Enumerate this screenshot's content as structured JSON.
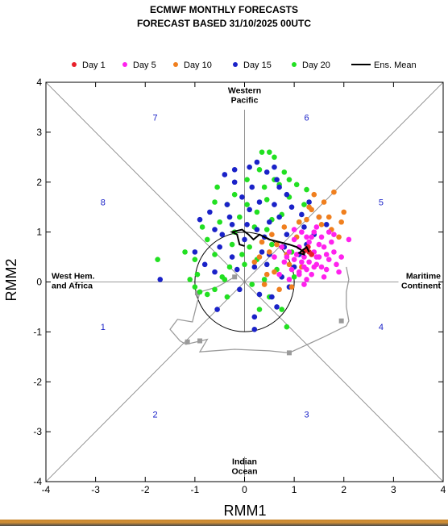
{
  "chart_data": {
    "type": "scatter",
    "title_line1": "ECMWF MONTHLY FORECASTS",
    "title_line2": "FORECAST  BASED 31/10/2025 00UTC",
    "xlabel": "RMM1",
    "ylabel": "RMM2",
    "xlim": [
      -4,
      4
    ],
    "ylim": [
      -4,
      4
    ],
    "xticks": [
      -4,
      -3,
      -2,
      -1,
      0,
      1,
      2,
      3,
      4
    ],
    "yticks": [
      -4,
      -3,
      -2,
      -1,
      0,
      1,
      2,
      3,
      4
    ],
    "grid": false,
    "legend_position": "top",
    "legend": [
      {
        "label": "Day 1",
        "color": "#e8202a",
        "kind": "dot"
      },
      {
        "label": "Day 5",
        "color": "#ff22ee",
        "kind": "dot"
      },
      {
        "label": "Day 10",
        "color": "#f07f1e",
        "kind": "dot"
      },
      {
        "label": "Day 15",
        "color": "#1a22c8",
        "kind": "dot"
      },
      {
        "label": "Day 20",
        "color": "#22e022",
        "kind": "dot"
      },
      {
        "label": "Ens. Mean",
        "color": "#000000",
        "kind": "line"
      }
    ],
    "regions": [
      {
        "name": "western-pacific",
        "lines": [
          "Western",
          "Pacific"
        ],
        "x": 0,
        "y": 3.72
      },
      {
        "name": "maritime-continent",
        "lines": [
          "Maritime",
          "Continent"
        ],
        "x": 3.45,
        "y": 0
      },
      {
        "name": "indian-ocean",
        "lines": [
          "Indian",
          "Ocean"
        ],
        "x": 0,
        "y": -3.72
      },
      {
        "name": "west-hem-africa",
        "lines": [
          "West Hem.",
          "and Africa"
        ],
        "x": -3.45,
        "y": 0
      }
    ],
    "phases": [
      {
        "label": "1",
        "x": -2.85,
        "y": -0.9
      },
      {
        "label": "2",
        "x": -1.8,
        "y": -2.65
      },
      {
        "label": "3",
        "x": 1.25,
        "y": -2.65
      },
      {
        "label": "4",
        "x": 2.75,
        "y": -0.9
      },
      {
        "label": "5",
        "x": 2.75,
        "y": 1.6
      },
      {
        "label": "6",
        "x": 1.25,
        "y": 3.3
      },
      {
        "label": "7",
        "x": -1.8,
        "y": 3.3
      },
      {
        "label": "8",
        "x": -2.85,
        "y": 1.6
      }
    ],
    "observed_track": [
      [
        -0.2,
        0.1
      ],
      [
        -0.55,
        -0.1
      ],
      [
        -0.9,
        -0.2
      ],
      [
        -1.05,
        -0.8
      ],
      [
        -1.35,
        -0.75
      ],
      [
        -1.5,
        -0.95
      ],
      [
        -1.3,
        -1.18
      ],
      [
        -1.18,
        -1.25
      ],
      [
        -0.75,
        -1.15
      ],
      [
        -0.9,
        -1.4
      ],
      [
        -0.2,
        -1.35
      ],
      [
        0.5,
        -1.38
      ],
      [
        0.9,
        -1.42
      ],
      [
        1.6,
        -1.1
      ],
      [
        2.05,
        -0.88
      ],
      [
        2.1,
        -0.78
      ],
      [
        2.05,
        -0.5
      ],
      [
        2.05,
        -0.2
      ],
      [
        2.1,
        0.05
      ],
      [
        2.05,
        0.3
      ]
    ],
    "observed_markers": [
      [
        -0.2,
        0.1
      ],
      [
        -0.95,
        -0.22
      ],
      [
        -1.15,
        -1.2
      ],
      [
        -0.9,
        -1.18
      ],
      [
        0.9,
        -1.42
      ],
      [
        1.95,
        -0.78
      ]
    ],
    "ens_mean": [
      [
        1.3,
        0.6
      ],
      [
        1.25,
        0.7
      ],
      [
        1.1,
        0.58
      ],
      [
        1.2,
        0.55
      ],
      [
        1.2,
        0.6
      ],
      [
        1.05,
        0.7
      ],
      [
        0.9,
        0.75
      ],
      [
        0.7,
        0.8
      ],
      [
        0.5,
        0.85
      ],
      [
        0.3,
        0.95
      ],
      [
        0.18,
        0.85
      ],
      [
        0.08,
        0.95
      ],
      [
        -0.05,
        1.05
      ],
      [
        -0.25,
        1.0
      ],
      [
        -0.15,
        0.95
      ],
      [
        -0.1,
        0.75
      ],
      [
        0.0,
        0.72
      ]
    ],
    "series": [
      {
        "name": "Day 1",
        "color": "#e8202a",
        "points": [
          [
            1.25,
            0.65
          ],
          [
            1.3,
            0.6
          ],
          [
            1.2,
            0.62
          ],
          [
            1.35,
            0.55
          ],
          [
            1.28,
            0.7
          ]
        ]
      },
      {
        "name": "Day 5",
        "color": "#ff22ee",
        "points": [
          [
            1.2,
            0.5
          ],
          [
            1.4,
            0.6
          ],
          [
            1.1,
            0.7
          ],
          [
            1.0,
            0.45
          ],
          [
            1.5,
            0.5
          ],
          [
            1.3,
            0.8
          ],
          [
            0.9,
            0.6
          ],
          [
            1.6,
            0.7
          ],
          [
            1.2,
            0.3
          ],
          [
            0.8,
            0.4
          ],
          [
            1.1,
            0.2
          ],
          [
            1.45,
            0.35
          ],
          [
            1.7,
            0.45
          ],
          [
            1.25,
            0.9
          ],
          [
            1.55,
            0.9
          ],
          [
            1.0,
            0.85
          ],
          [
            0.95,
            0.25
          ],
          [
            1.35,
            0.15
          ],
          [
            1.65,
            0.25
          ],
          [
            1.8,
            0.6
          ],
          [
            1.4,
            1.0
          ],
          [
            0.75,
            0.7
          ],
          [
            1.15,
            1.0
          ],
          [
            1.6,
            0.1
          ],
          [
            1.25,
            0.05
          ],
          [
            0.9,
            0.05
          ],
          [
            1.85,
            0.35
          ],
          [
            1.5,
            0.75
          ],
          [
            1.05,
            0.55
          ],
          [
            1.3,
            0.4
          ],
          [
            2.1,
            0.85
          ],
          [
            1.75,
            0.8
          ],
          [
            1.9,
            0.2
          ],
          [
            1.2,
            -0.05
          ],
          [
            0.7,
            0.15
          ],
          [
            1.45,
            1.1
          ],
          [
            1.0,
            1.05
          ],
          [
            1.65,
            0.55
          ],
          [
            1.4,
            0.3
          ],
          [
            1.15,
            0.4
          ],
          [
            0.85,
            0.5
          ],
          [
            1.95,
            0.5
          ],
          [
            1.55,
            0.3
          ],
          [
            1.35,
            0.9
          ],
          [
            1.1,
            0.15
          ],
          [
            1.7,
            1.0
          ],
          [
            1.25,
            0.25
          ],
          [
            0.6,
            0.5
          ],
          [
            1.8,
            0.95
          ],
          [
            1.45,
            0.5
          ]
        ]
      },
      {
        "name": "Day 10",
        "color": "#f07f1e",
        "points": [
          [
            1.8,
            1.8
          ],
          [
            1.95,
            1.2
          ],
          [
            1.7,
            1.3
          ],
          [
            0.9,
            0.35
          ],
          [
            0.6,
            0.2
          ],
          [
            0.4,
            -0.05
          ],
          [
            0.7,
            -0.15
          ],
          [
            1.3,
            1.5
          ],
          [
            1.5,
            1.3
          ],
          [
            1.1,
            1.2
          ],
          [
            0.8,
            1.1
          ],
          [
            0.5,
            0.6
          ],
          [
            0.3,
            0.5
          ],
          [
            1.9,
            0.9
          ],
          [
            1.6,
            1.6
          ],
          [
            0.95,
            -0.1
          ],
          [
            0.55,
            0.95
          ],
          [
            1.25,
            1.25
          ],
          [
            1.4,
            1.75
          ],
          [
            0.2,
            0.4
          ],
          [
            1.75,
            1.05
          ],
          [
            0.65,
            0.75
          ],
          [
            1.05,
            0.9
          ],
          [
            0.45,
            0.15
          ],
          [
            1.35,
            1.45
          ],
          [
            0.85,
            0.55
          ],
          [
            1.55,
            1.15
          ],
          [
            0.35,
            0.8
          ],
          [
            2.0,
            1.4
          ],
          [
            1.15,
            0.3
          ]
        ]
      },
      {
        "name": "Day 15",
        "color": "#1a22c8",
        "points": [
          [
            -1.7,
            0.05
          ],
          [
            -0.9,
            1.25
          ],
          [
            -0.7,
            1.4
          ],
          [
            -0.3,
            1.3
          ],
          [
            -0.2,
            2.0
          ],
          [
            0.1,
            2.3
          ],
          [
            0.45,
            2.2
          ],
          [
            0.7,
            1.9
          ],
          [
            0.3,
            1.6
          ],
          [
            0.5,
            1.2
          ],
          [
            0.05,
            1.15
          ],
          [
            -0.5,
            0.7
          ],
          [
            -0.8,
            0.35
          ],
          [
            -0.1,
            -0.15
          ],
          [
            0.2,
            -0.7
          ],
          [
            0.65,
            -0.5
          ],
          [
            -0.55,
            -0.55
          ],
          [
            0.85,
            0.95
          ],
          [
            1.15,
            1.35
          ],
          [
            0.2,
            -0.95
          ],
          [
            -0.25,
            0.5
          ],
          [
            0.35,
            0.6
          ],
          [
            -0.4,
            2.15
          ],
          [
            0.25,
            2.4
          ],
          [
            0.6,
            2.3
          ],
          [
            -0.2,
            2.25
          ],
          [
            0.0,
            0.85
          ],
          [
            0.45,
            0.35
          ],
          [
            0.8,
            0.7
          ],
          [
            -0.6,
            1.05
          ],
          [
            1.3,
            1.6
          ],
          [
            1.1,
            0.55
          ],
          [
            0.6,
            1.55
          ],
          [
            0.4,
            0.9
          ],
          [
            -0.35,
            1.55
          ],
          [
            -1.0,
            0.6
          ],
          [
            0.15,
            1.9
          ],
          [
            0.75,
            0.1
          ],
          [
            1.4,
            0.95
          ],
          [
            0.25,
            1.05
          ],
          [
            -0.15,
            0.25
          ],
          [
            0.55,
            -0.3
          ],
          [
            1.2,
            1.1
          ],
          [
            0.95,
            1.5
          ],
          [
            -0.05,
            1.7
          ],
          [
            0.3,
            -0.25
          ],
          [
            0.7,
            1.3
          ],
          [
            1.0,
            0.3
          ],
          [
            -0.45,
            0.95
          ],
          [
            0.2,
            0.3
          ],
          [
            1.25,
            0.75
          ],
          [
            0.85,
            1.75
          ],
          [
            -0.25,
            1.15
          ],
          [
            0.5,
            0.55
          ],
          [
            1.5,
            1.3
          ],
          [
            0.1,
            1.45
          ],
          [
            -0.6,
            0.2
          ],
          [
            0.65,
            2.05
          ],
          [
            0.9,
            -0.1
          ],
          [
            1.65,
            1.15
          ]
        ]
      },
      {
        "name": "Day 20",
        "color": "#22e022",
        "points": [
          [
            -1.75,
            0.45
          ],
          [
            -1.0,
            0.45
          ],
          [
            -1.1,
            0.05
          ],
          [
            -0.9,
            -0.2
          ],
          [
            -0.6,
            -0.15
          ],
          [
            -0.75,
            -0.25
          ],
          [
            -0.45,
            0.1
          ],
          [
            -0.3,
            0.3
          ],
          [
            0.0,
            0.35
          ],
          [
            -0.1,
            1.3
          ],
          [
            -0.35,
            1.55
          ],
          [
            -0.55,
            1.9
          ],
          [
            0.35,
            2.6
          ],
          [
            0.5,
            2.6
          ],
          [
            0.6,
            2.5
          ],
          [
            0.8,
            2.2
          ],
          [
            0.4,
            1.9
          ],
          [
            0.9,
            1.7
          ],
          [
            1.05,
            1.95
          ],
          [
            0.2,
            1.1
          ],
          [
            0.55,
            0.75
          ],
          [
            -0.05,
            0.55
          ],
          [
            -0.6,
            0.55
          ],
          [
            0.15,
            -0.05
          ],
          [
            0.5,
            -0.3
          ],
          [
            0.75,
            -0.55
          ],
          [
            0.3,
            -0.55
          ],
          [
            0.25,
            0.45
          ],
          [
            0.65,
            0.25
          ],
          [
            1.0,
            0.1
          ],
          [
            -0.2,
            1.0
          ],
          [
            0.75,
            1.35
          ],
          [
            0.45,
            1.65
          ],
          [
            -0.5,
            1.2
          ],
          [
            0.05,
            2.05
          ],
          [
            0.3,
            2.25
          ],
          [
            1.2,
            1.55
          ],
          [
            -1.2,
            0.6
          ],
          [
            -1.0,
            -0.1
          ],
          [
            -0.75,
            0.85
          ],
          [
            0.85,
            -0.9
          ],
          [
            0.55,
            1.25
          ],
          [
            -0.35,
            -0.3
          ],
          [
            0.1,
            0.7
          ],
          [
            -0.85,
            1.1
          ],
          [
            0.95,
            0.6
          ],
          [
            -0.2,
            1.75
          ],
          [
            0.7,
            1.95
          ],
          [
            0.25,
            1.4
          ],
          [
            -0.6,
            1.6
          ],
          [
            0.4,
            0.05
          ],
          [
            1.1,
            1.2
          ],
          [
            -0.95,
            0.15
          ],
          [
            0.6,
            2.05
          ],
          [
            -0.25,
            0.75
          ],
          [
            0.9,
            2.05
          ],
          [
            0.05,
            1.55
          ],
          [
            0.45,
            1.05
          ],
          [
            -0.4,
            0.05
          ],
          [
            1.25,
            1.85
          ]
        ]
      }
    ]
  }
}
